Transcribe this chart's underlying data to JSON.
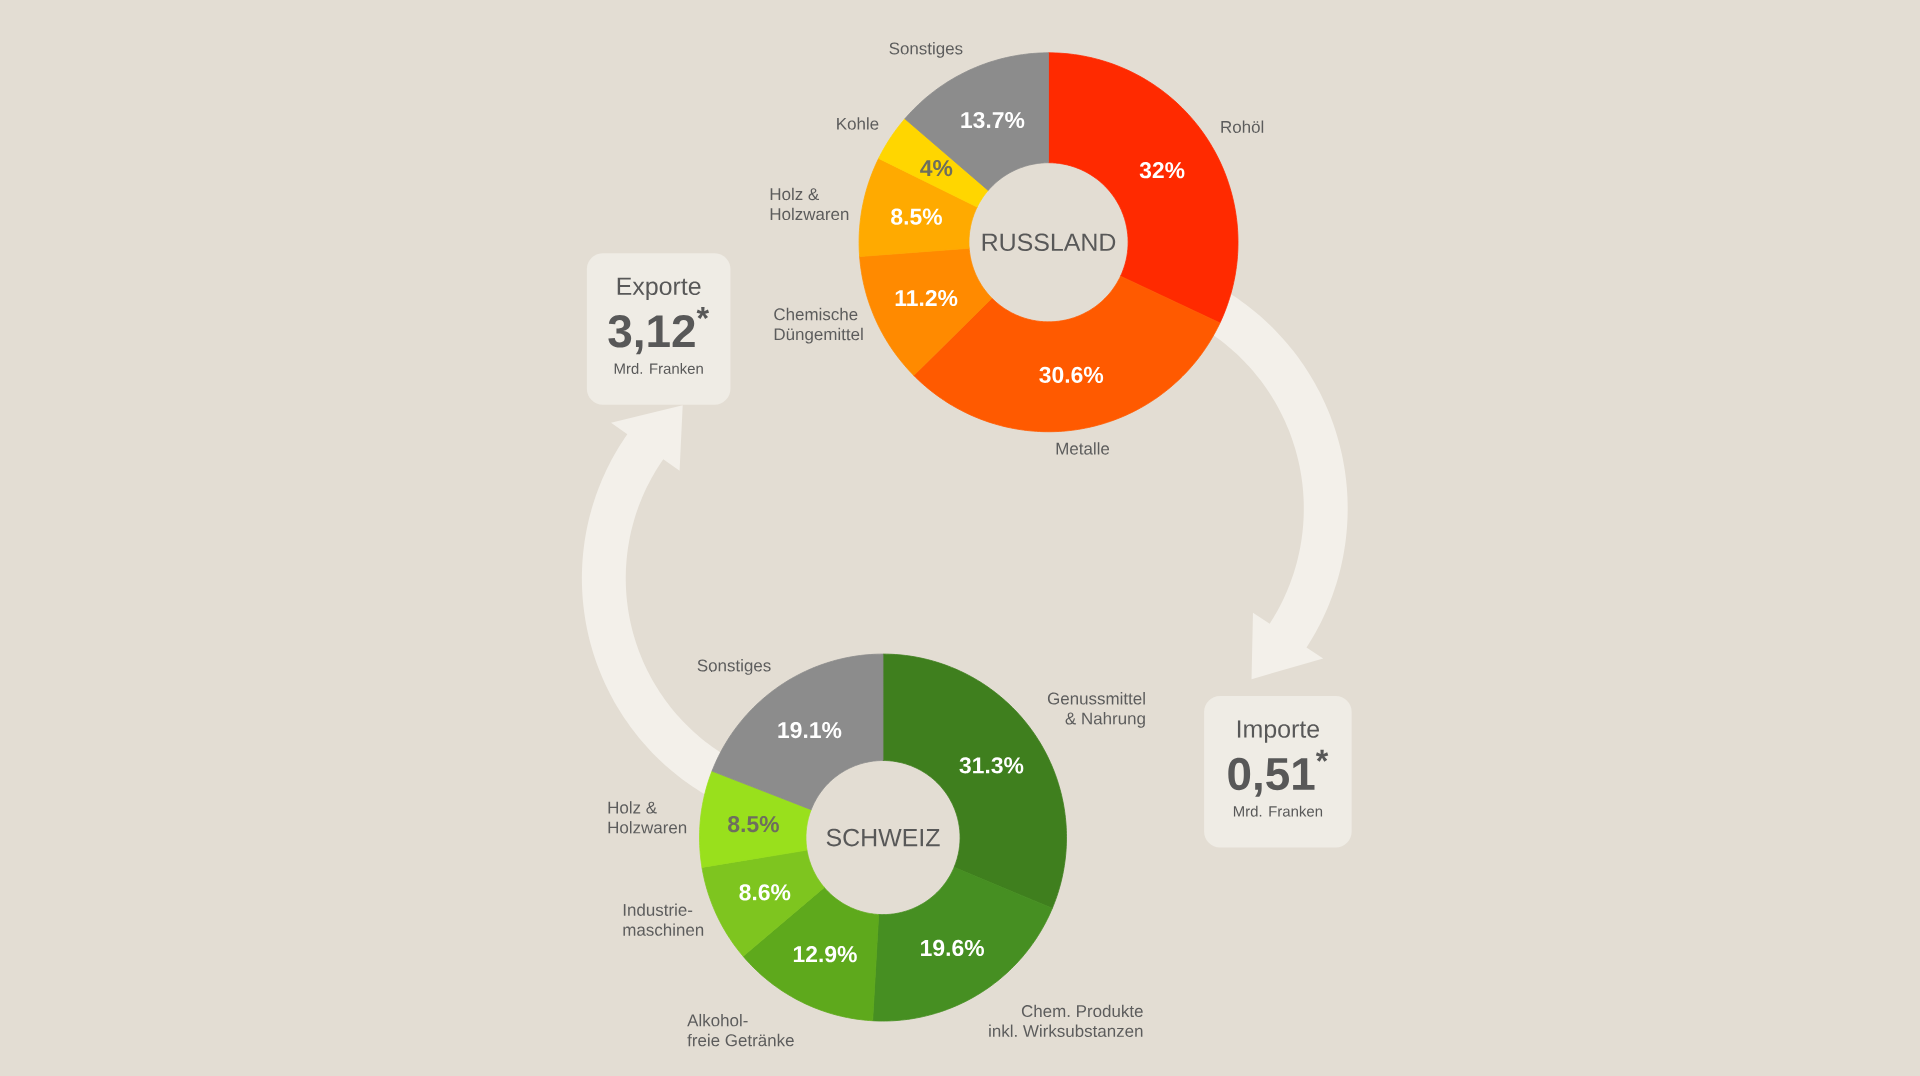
{
  "chart_data": [
    {
      "type": "donut",
      "title": "RUSSLAND",
      "categories": [
        "Rohöl",
        "Metalle",
        "Chemische Düngemittel",
        "Holz & Holzwaren",
        "Kohle",
        "Sonstiges"
      ],
      "values": [
        32,
        30.6,
        11.2,
        8.5,
        4,
        13.7
      ],
      "value_labels": [
        "32%",
        "30.6%",
        "11.2%",
        "8.5%",
        "4%",
        "13.7%"
      ],
      "colors": [
        "#ff2a00",
        "#ff5a00",
        "#ff8a00",
        "#ffaa00",
        "#ffd600",
        "#8c8c8c"
      ]
    },
    {
      "type": "other",
      "title": "Exporte",
      "annotations": [
        "3,12$^{*}$",
        "Mrd. Franken"
      ]
    },
    {
      "type": "donut",
      "title": "SCHWEIZ",
      "categories": [
        "Genussmittel & Nahrung",
        "Chem. Produkte inkl. Wirksubstanzen",
        "Alkohol-freie Getränke",
        "Industrie-maschinen",
        "Holz & Holzwaren",
        "Sonstiges"
      ],
      "values": [
        31.3,
        19.6,
        12.9,
        8.6,
        8.5,
        19.1
      ],
      "value_labels": [
        "31.3%",
        "19.6%",
        "12.9%",
        "8.6%",
        "8.5%",
        "19.1%"
      ],
      "colors": [
        "#3f7f1e",
        "#468f22",
        "#5ea91c",
        "#7ec51f",
        "#99e01c",
        "#8c8c8c"
      ]
    },
    {
      "type": "other",
      "title": "Importe",
      "annotations": [
        "0,51$^{*}$",
        "Mrd. Franken"
      ]
    }
  ]
}
